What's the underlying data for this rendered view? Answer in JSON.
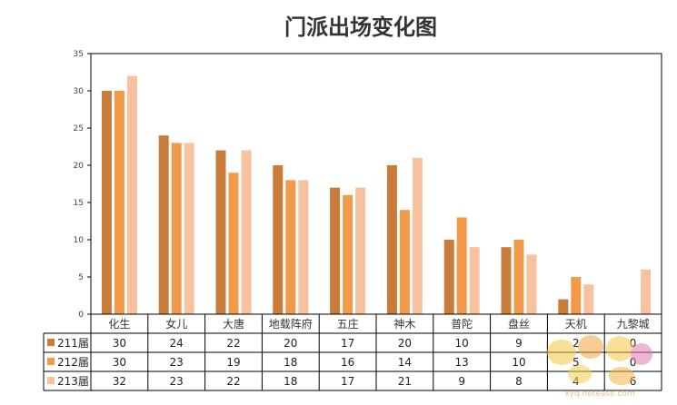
{
  "chart_data": {
    "type": "bar",
    "title": "门派出场变化图",
    "categories": [
      "化生",
      "女儿",
      "大唐",
      "地载阵府",
      "五庄",
      "神木",
      "普陀",
      "盘丝",
      "天机",
      "九黎城"
    ],
    "series": [
      {
        "name": "211届",
        "color": "#c97b3a",
        "values": [
          30,
          24,
          22,
          20,
          17,
          20,
          10,
          9,
          2,
          0
        ]
      },
      {
        "name": "212届",
        "color": "#f29a4a",
        "values": [
          30,
          23,
          19,
          18,
          16,
          14,
          13,
          10,
          5,
          0
        ]
      },
      {
        "name": "213届",
        "color": "#f7c2a0",
        "values": [
          32,
          23,
          22,
          18,
          17,
          21,
          9,
          8,
          4,
          6
        ]
      }
    ],
    "ylim": [
      0,
      35
    ],
    "yticks": [
      0,
      5,
      10,
      15,
      20,
      25,
      30,
      35
    ],
    "grid": false,
    "legend": "data-table"
  },
  "watermark": {
    "icon": "game-logo-watermark",
    "url_text": "xyq.netease.com"
  }
}
